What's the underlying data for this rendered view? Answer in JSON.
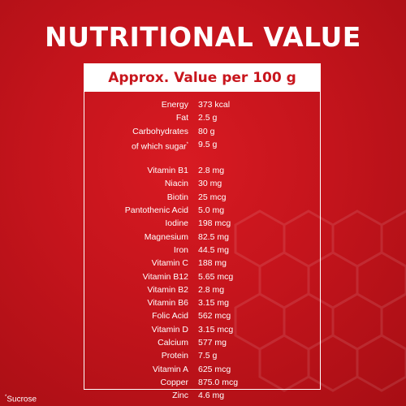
{
  "title": "NUTRITIONAL VALUE",
  "header": "Approx. Value per 100 g",
  "group1": [
    {
      "label": "Energy",
      "value": "373 kcal"
    },
    {
      "label": "Fat",
      "value": "2.5 g"
    },
    {
      "label": "Carbohydrates",
      "value": "80 g"
    },
    {
      "label": "of which sugar",
      "value": "9.5 g",
      "mark": "*"
    }
  ],
  "group2": [
    {
      "label": "Vitamin B1",
      "value": "2.8 mg"
    },
    {
      "label": "Niacin",
      "value": "30 mg"
    },
    {
      "label": "Biotin",
      "value": "25 mcg"
    },
    {
      "label": "Pantothenic Acid",
      "value": "5.0 mg"
    },
    {
      "label": "Iodine",
      "value": "198 mcg"
    },
    {
      "label": "Magnesium",
      "value": "82.5 mg"
    },
    {
      "label": "Iron",
      "value": "44.5 mg"
    },
    {
      "label": "Vitamin C",
      "value": "188 mg"
    },
    {
      "label": "Vitamin B12",
      "value": "5.65 mcg"
    },
    {
      "label": "Vitamin B2",
      "value": "2.8 mg"
    },
    {
      "label": "Vitamin B6",
      "value": "3.15 mg"
    },
    {
      "label": "Folic Acid",
      "value": "562 mcg"
    },
    {
      "label": "Vitamin D",
      "value": "3.15 mcg"
    },
    {
      "label": "Calcium",
      "value": "577 mg"
    },
    {
      "label": "Protein",
      "value": "7.5 g"
    },
    {
      "label": "Vitamin A",
      "value": "625 mcg"
    },
    {
      "label": "Copper",
      "value": "875.0 mcg"
    },
    {
      "label": "Zinc",
      "value": "4.6 mg"
    }
  ],
  "footnote": {
    "mark": "*",
    "text": "Sucrose"
  },
  "colors": {
    "background": "#c4141c",
    "header_text": "#c8161d",
    "foreground": "#ffffff"
  }
}
